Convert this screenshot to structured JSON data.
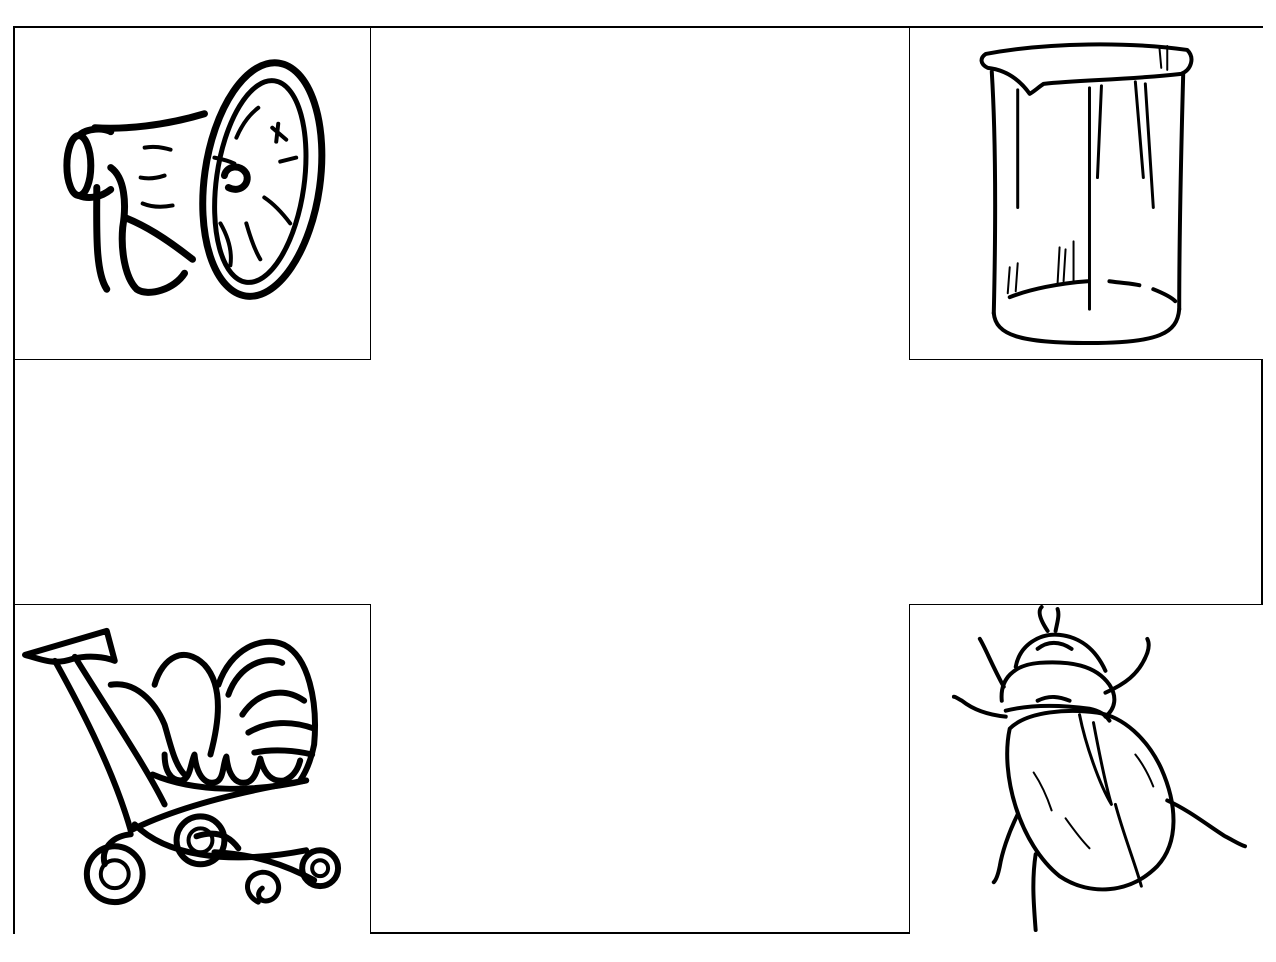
{
  "worksheet": {
    "pictures": [
      {
        "position": "top-left",
        "icon": "megaphone-icon"
      },
      {
        "position": "top-right",
        "icon": "beaker-icon"
      },
      {
        "position": "bottom-left",
        "icon": "baby-stroller-icon"
      },
      {
        "position": "bottom-right",
        "icon": "beetle-icon"
      }
    ],
    "ink_color": "#000000",
    "background_color": "#ffffff"
  }
}
